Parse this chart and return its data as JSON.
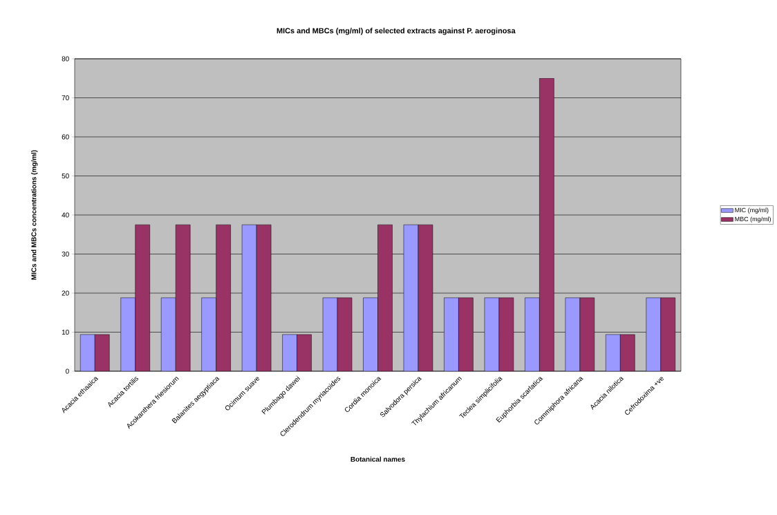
{
  "chart_data": {
    "type": "bar",
    "title": "MICs and MBCs (mg/ml) of selected extracts against P. aeroginosa",
    "xlabel": "Botanical names",
    "ylabel": "MICs and MBCs concentrations (mg/ml)",
    "categories": [
      "Acacia ethaaica",
      "Acacia tortilis",
      "Acokanthera friesiorum",
      "Balanites aegyptiaca",
      "Ocimum suave",
      "Plumbago dawei",
      "Clerodendrum myriacoides",
      "Cordia monoica",
      "Salvodora persica",
      "Thylachium africanum",
      "Teclea simplicifolia",
      "Euphorbia scarlatica",
      "Commiphora africana",
      "Acacia nilotica",
      "Cefrodoxima +ve"
    ],
    "series": [
      {
        "name": "MIC (mg/ml)",
        "color": "#9999ff",
        "values": [
          9.4,
          18.8,
          18.8,
          18.8,
          37.5,
          9.4,
          18.8,
          18.8,
          37.5,
          18.8,
          18.8,
          18.8,
          18.8,
          9.4,
          18.8
        ]
      },
      {
        "name": "MBC (mg/ml)",
        "color": "#993366",
        "values": [
          9.4,
          37.5,
          37.5,
          37.5,
          37.5,
          9.4,
          18.8,
          37.5,
          37.5,
          18.8,
          18.8,
          75,
          18.8,
          9.4,
          18.8
        ]
      }
    ],
    "ylim": [
      0,
      80
    ],
    "yticks": [
      0,
      10,
      20,
      30,
      40,
      50,
      60,
      70,
      80
    ],
    "grid": "y",
    "legend": "right"
  }
}
